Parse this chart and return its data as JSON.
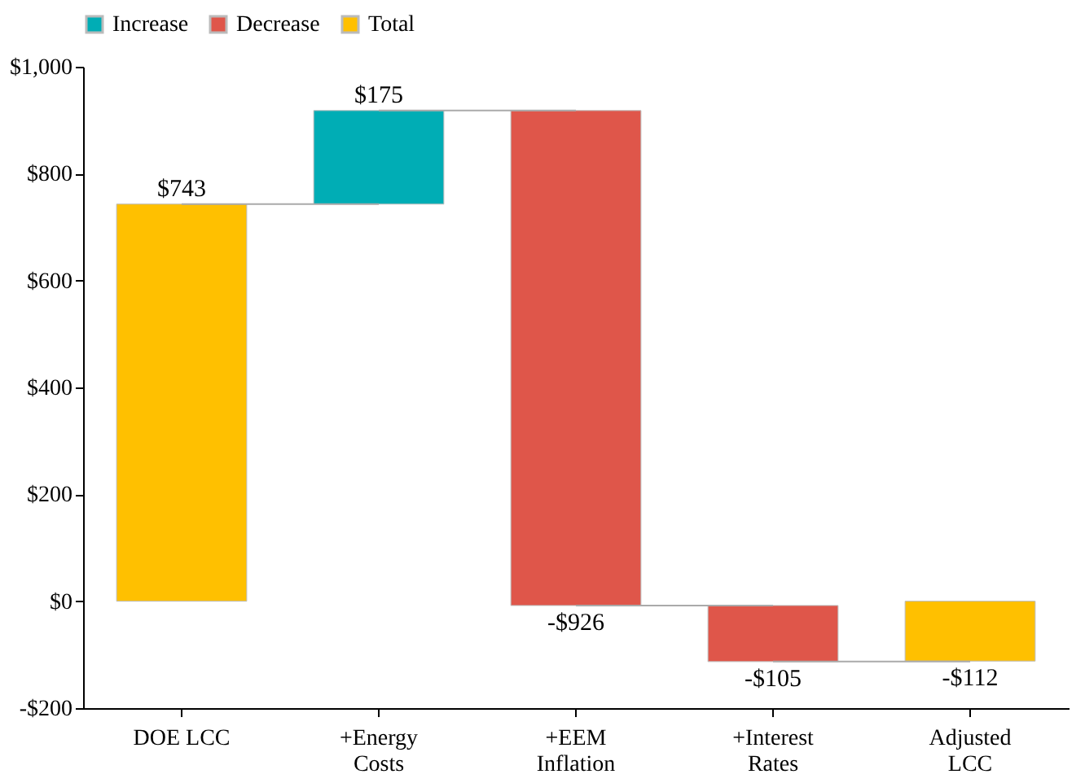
{
  "chart_data": {
    "type": "bar",
    "categories": [
      "DOE LCC",
      "+Energy\nCosts",
      "+EEM\nInflation",
      "+Interest\nRates",
      "Adjusted\nLCC"
    ],
    "series": [
      {
        "name": "Increase",
        "color": "#00adb5",
        "base": [
          null,
          743,
          null,
          null,
          null
        ],
        "values": [
          null,
          175,
          null,
          null,
          null
        ],
        "value_labels": [
          null,
          "$175",
          null,
          null,
          null
        ]
      },
      {
        "name": "Decrease",
        "color": "#df564a",
        "base": [
          null,
          null,
          918,
          -8,
          null
        ],
        "values": [
          null,
          null,
          -926,
          -105,
          null
        ],
        "value_labels": [
          null,
          null,
          "-$926",
          "-$105",
          null
        ]
      },
      {
        "name": "Total",
        "color": "#ffc000",
        "base": [
          0,
          null,
          null,
          null,
          0
        ],
        "values": [
          743,
          null,
          null,
          null,
          -112
        ],
        "value_labels": [
          "$743",
          null,
          null,
          null,
          "-$112"
        ]
      }
    ],
    "ylim": [
      -200,
      1000
    ],
    "yticks": [
      {
        "value": -200,
        "label": "-$200"
      },
      {
        "value": 0,
        "label": "$0"
      },
      {
        "value": 200,
        "label": "$200"
      },
      {
        "value": 400,
        "label": "$400"
      },
      {
        "value": 600,
        "label": "$600"
      },
      {
        "value": 800,
        "label": "$800"
      },
      {
        "value": 1000,
        "label": "$1,000"
      }
    ],
    "grid": false,
    "legend": "top"
  }
}
